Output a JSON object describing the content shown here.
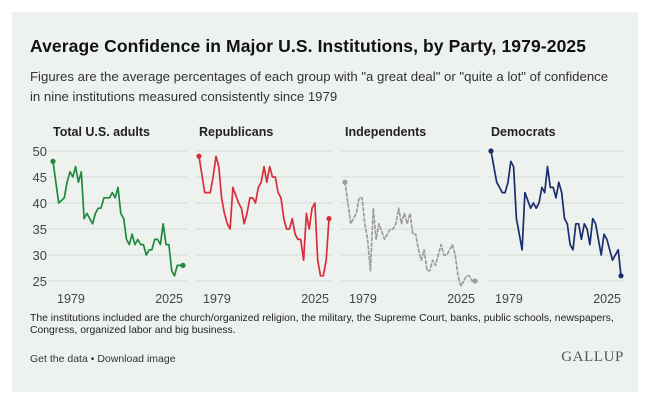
{
  "header": {
    "title": "Average Confidence in Major U.S. Institutions, by Party, 1979-2025",
    "subtitle": "Figures are the average percentages of each group with \"a great deal\" or \"quite a lot\" of confidence in nine institutions measured consistently since 1979"
  },
  "footer": {
    "note": "The institutions included are the church/organized religion, the military, the Supreme Court, banks, public schools, newspapers, Congress, organized labor and big business.",
    "get_data": "Get the data",
    "separator": "•",
    "download": "Download image",
    "logo": "GALLUP"
  },
  "chart_data": {
    "type": "line",
    "ylim": [
      25,
      50
    ],
    "yticks": [
      50,
      45,
      40,
      35,
      30,
      25
    ],
    "xlim": [
      1979,
      2025
    ],
    "xticks": [
      "1979",
      "2025"
    ],
    "panels": [
      {
        "name": "Total U.S. adults",
        "color": "#1e8a3c",
        "dashed": false,
        "x": [
          1979,
          1981,
          1983,
          1984,
          1985,
          1986,
          1987,
          1988,
          1989,
          1990,
          1991,
          1993,
          1994,
          1995,
          1996,
          1997,
          1998,
          1999,
          2000,
          2001,
          2002,
          2003,
          2004,
          2005,
          2006,
          2007,
          2008,
          2009,
          2010,
          2011,
          2012,
          2013,
          2014,
          2015,
          2016,
          2017,
          2018,
          2019,
          2020,
          2021,
          2022,
          2023,
          2024,
          2025
        ],
        "y": [
          48,
          40,
          41,
          44,
          46,
          45,
          47,
          44,
          46,
          37,
          38,
          36,
          38,
          39,
          39,
          41,
          41,
          41,
          42,
          41,
          43,
          38,
          37,
          33,
          32,
          34,
          32,
          33,
          32,
          32,
          30,
          31,
          31,
          33,
          33,
          32,
          36,
          32,
          32,
          27,
          26,
          28,
          28,
          28
        ]
      },
      {
        "name": "Republicans",
        "color": "#d92d3a",
        "dashed": false,
        "x": [
          1979,
          1981,
          1983,
          1984,
          1985,
          1986,
          1987,
          1988,
          1989,
          1990,
          1991,
          1993,
          1994,
          1995,
          1996,
          1997,
          1998,
          1999,
          2000,
          2001,
          2002,
          2003,
          2004,
          2005,
          2006,
          2007,
          2008,
          2009,
          2010,
          2011,
          2012,
          2013,
          2014,
          2015,
          2016,
          2017,
          2018,
          2019,
          2020,
          2021,
          2022,
          2023,
          2024,
          2025
        ],
        "y": [
          49,
          42,
          42,
          45,
          49,
          47,
          41,
          38,
          36,
          35,
          43,
          40,
          39,
          36,
          38,
          41,
          41,
          40,
          43,
          44,
          47,
          44,
          47,
          45,
          45,
          42,
          41,
          37,
          35,
          35,
          37,
          34,
          33,
          33,
          29,
          38,
          35,
          39,
          40,
          29,
          26,
          26,
          29,
          37
        ]
      },
      {
        "name": "Independents",
        "color": "#9d9d9d",
        "dashed": true,
        "x": [
          1979,
          1981,
          1983,
          1984,
          1985,
          1986,
          1987,
          1988,
          1989,
          1990,
          1991,
          1993,
          1994,
          1995,
          1996,
          1997,
          1998,
          1999,
          2000,
          2001,
          2002,
          2003,
          2004,
          2005,
          2006,
          2007,
          2008,
          2009,
          2010,
          2011,
          2012,
          2013,
          2014,
          2015,
          2016,
          2017,
          2018,
          2019,
          2020,
          2021,
          2022,
          2023,
          2024,
          2025
        ],
        "y": [
          44,
          36,
          38,
          41,
          41,
          36,
          33,
          27,
          39,
          33,
          36,
          33,
          34,
          35,
          35,
          36,
          39,
          36,
          38,
          36,
          38,
          34,
          34,
          31,
          29,
          31,
          27,
          27,
          29,
          28,
          30,
          32,
          30,
          30,
          31,
          32,
          30,
          26,
          24,
          25,
          26,
          26,
          25,
          25
        ]
      },
      {
        "name": "Democrats",
        "color": "#1a2e6e",
        "dashed": false,
        "x": [
          1979,
          1981,
          1983,
          1984,
          1985,
          1986,
          1987,
          1988,
          1989,
          1990,
          1991,
          1993,
          1994,
          1995,
          1996,
          1997,
          1998,
          1999,
          2000,
          2001,
          2002,
          2003,
          2004,
          2005,
          2006,
          2007,
          2008,
          2009,
          2010,
          2011,
          2012,
          2013,
          2014,
          2015,
          2016,
          2017,
          2018,
          2019,
          2020,
          2021,
          2022,
          2023,
          2024,
          2025
        ],
        "y": [
          50,
          44,
          42,
          42,
          44,
          48,
          47,
          37,
          34,
          31,
          42,
          39,
          40,
          39,
          40,
          43,
          42,
          47,
          43,
          43,
          41,
          44,
          42,
          37,
          36,
          32,
          31,
          36,
          36,
          33,
          36,
          35,
          32,
          37,
          36,
          33,
          30,
          34,
          33,
          31,
          29,
          30,
          31,
          26
        ]
      }
    ]
  }
}
